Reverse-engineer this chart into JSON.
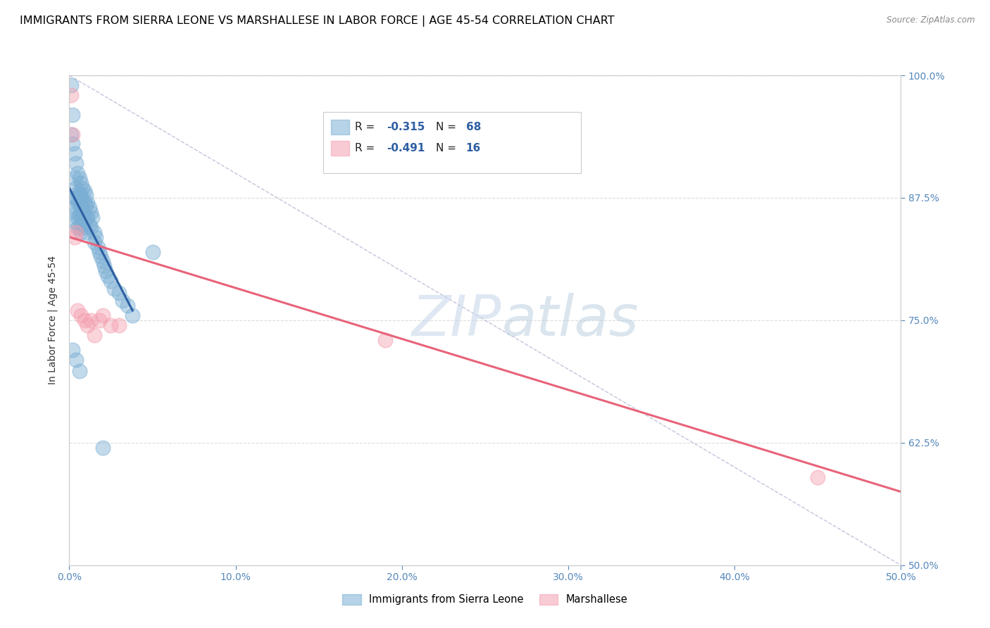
{
  "title": "IMMIGRANTS FROM SIERRA LEONE VS MARSHALLESE IN LABOR FORCE | AGE 45-54 CORRELATION CHART",
  "source": "Source: ZipAtlas.com",
  "ylabel": "In Labor Force | Age 45-54",
  "xlim": [
    0.0,
    0.5
  ],
  "ylim": [
    0.5,
    1.0
  ],
  "xticks": [
    0.0,
    0.1,
    0.2,
    0.3,
    0.4,
    0.5
  ],
  "xticklabels": [
    "0.0%",
    "10.0%",
    "20.0%",
    "30.0%",
    "40.0%",
    "50.0%"
  ],
  "yticks": [
    0.5,
    0.625,
    0.75,
    0.875,
    1.0
  ],
  "yticklabels": [
    "50.0%",
    "62.5%",
    "75.0%",
    "87.5%",
    "100.0%"
  ],
  "blue_r": "-0.315",
  "blue_n": "68",
  "pink_r": "-0.491",
  "pink_n": "16",
  "blue_color": "#7BAFD4",
  "pink_color": "#F4A0B0",
  "blue_line_color": "#2E5FA3",
  "pink_line_color": "#E8637A",
  "blue_label_color": "#2E5FA3",
  "watermark_zip": "ZIP",
  "watermark_atlas": "atlas",
  "watermark_color": "#C8D8EA",
  "legend_label_blue": "Immigrants from Sierra Leone",
  "legend_label_pink": "Marshallese",
  "blue_dots_x": [
    0.001,
    0.001,
    0.002,
    0.002,
    0.003,
    0.003,
    0.003,
    0.003,
    0.004,
    0.004,
    0.004,
    0.004,
    0.004,
    0.005,
    0.005,
    0.005,
    0.005,
    0.005,
    0.006,
    0.006,
    0.006,
    0.006,
    0.006,
    0.007,
    0.007,
    0.007,
    0.007,
    0.007,
    0.008,
    0.008,
    0.008,
    0.008,
    0.009,
    0.009,
    0.009,
    0.009,
    0.01,
    0.01,
    0.01,
    0.01,
    0.011,
    0.011,
    0.012,
    0.012,
    0.013,
    0.013,
    0.014,
    0.015,
    0.015,
    0.016,
    0.017,
    0.018,
    0.019,
    0.02,
    0.021,
    0.022,
    0.023,
    0.025,
    0.027,
    0.03,
    0.032,
    0.035,
    0.038,
    0.002,
    0.004,
    0.006,
    0.02,
    0.05
  ],
  "blue_dots_y": [
    0.99,
    0.94,
    0.96,
    0.93,
    0.92,
    0.895,
    0.875,
    0.865,
    0.91,
    0.885,
    0.875,
    0.86,
    0.85,
    0.9,
    0.88,
    0.87,
    0.855,
    0.845,
    0.895,
    0.88,
    0.87,
    0.858,
    0.845,
    0.89,
    0.878,
    0.865,
    0.855,
    0.84,
    0.885,
    0.872,
    0.86,
    0.848,
    0.882,
    0.87,
    0.858,
    0.845,
    0.878,
    0.868,
    0.855,
    0.84,
    0.87,
    0.855,
    0.865,
    0.848,
    0.86,
    0.845,
    0.855,
    0.84,
    0.83,
    0.835,
    0.825,
    0.82,
    0.815,
    0.81,
    0.805,
    0.8,
    0.795,
    0.79,
    0.782,
    0.778,
    0.77,
    0.765,
    0.755,
    0.72,
    0.71,
    0.698,
    0.62,
    0.82
  ],
  "pink_dots_x": [
    0.001,
    0.002,
    0.003,
    0.004,
    0.005,
    0.007,
    0.009,
    0.011,
    0.013,
    0.015,
    0.018,
    0.02,
    0.025,
    0.03,
    0.19,
    0.45
  ],
  "pink_dots_y": [
    0.98,
    0.94,
    0.835,
    0.84,
    0.76,
    0.755,
    0.75,
    0.745,
    0.75,
    0.735,
    0.75,
    0.755,
    0.745,
    0.745,
    0.73,
    0.59
  ],
  "blue_trendline_x": [
    0.0,
    0.038
  ],
  "blue_trendline_y": [
    0.885,
    0.76
  ],
  "pink_trendline_x": [
    0.0,
    0.5
  ],
  "pink_trendline_y": [
    0.835,
    0.575
  ],
  "ref_line_x": [
    0.0,
    0.5
  ],
  "ref_line_y": [
    1.0,
    0.5
  ],
  "background_color": "#FFFFFF",
  "grid_color": "#DDDDDD",
  "tick_color": "#5588BB",
  "title_fontsize": 11.5,
  "axis_label_fontsize": 10,
  "tick_fontsize": 10
}
